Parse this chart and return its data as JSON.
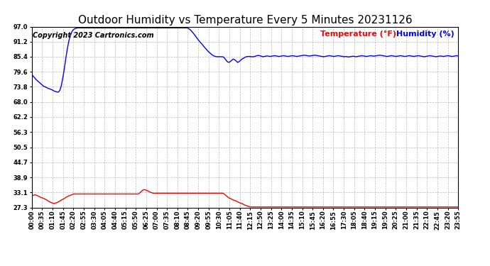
{
  "title": "Outdoor Humidity vs Temperature Every 5 Minutes 20231126",
  "copyright": "Copyright 2023 Cartronics.com",
  "legend_temp": "Temperature (°F)",
  "legend_hum": "Humidity (%)",
  "ylabel_values": [
    27.3,
    33.1,
    38.9,
    44.7,
    50.5,
    56.3,
    62.2,
    68.0,
    73.8,
    79.6,
    85.4,
    91.2,
    97.0
  ],
  "ymin": 27.3,
  "ymax": 97.0,
  "temp_color": "red",
  "humidity_color": "blue",
  "background_color": "#ffffff",
  "title_fontsize": 11,
  "copyright_fontsize": 7,
  "legend_fontsize": 8,
  "tick_fontsize": 6,
  "x_tick_labels": [
    "00:00",
    "00:35",
    "01:10",
    "01:45",
    "02:20",
    "02:55",
    "03:30",
    "04:05",
    "04:40",
    "05:15",
    "05:50",
    "06:25",
    "07:00",
    "07:35",
    "08:10",
    "08:45",
    "09:20",
    "09:55",
    "10:30",
    "11:05",
    "11:40",
    "12:15",
    "12:50",
    "13:25",
    "14:00",
    "14:35",
    "15:10",
    "15:45",
    "16:20",
    "16:55",
    "17:30",
    "18:05",
    "18:40",
    "19:15",
    "19:50",
    "20:25",
    "21:00",
    "21:35",
    "22:10",
    "22:45",
    "23:20",
    "23:55"
  ],
  "humidity_data": [
    78.5,
    77.8,
    77.2,
    76.5,
    76.0,
    75.5,
    75.0,
    74.5,
    74.0,
    73.8,
    73.5,
    73.2,
    73.0,
    72.8,
    72.5,
    72.2,
    72.0,
    71.8,
    71.8,
    72.5,
    74.5,
    77.5,
    81.0,
    85.0,
    88.5,
    91.5,
    93.5,
    95.0,
    95.8,
    96.2,
    96.4,
    96.5,
    96.5,
    96.5,
    96.5,
    96.5,
    96.5,
    96.5,
    96.5,
    96.5,
    96.5,
    96.5,
    96.5,
    96.5,
    96.5,
    96.5,
    96.5,
    96.5,
    96.5,
    96.5,
    96.5,
    96.5,
    96.5,
    96.5,
    96.5,
    96.5,
    96.5,
    96.5,
    96.5,
    96.5,
    96.5,
    96.5,
    96.5,
    96.5,
    96.5,
    96.5,
    96.5,
    96.5,
    96.5,
    96.5,
    96.5,
    96.5,
    96.5,
    96.5,
    96.5,
    96.5,
    96.5,
    96.5,
    96.5,
    96.5,
    96.5,
    96.5,
    96.5,
    96.5,
    96.5,
    96.5,
    96.5,
    96.5,
    96.5,
    96.5,
    96.5,
    96.5,
    96.5,
    96.5,
    96.5,
    96.5,
    96.5,
    96.5,
    96.5,
    96.5,
    96.5,
    96.5,
    96.5,
    96.5,
    96.5,
    96.5,
    96.2,
    95.8,
    95.2,
    94.5,
    93.8,
    93.0,
    92.2,
    91.5,
    90.8,
    90.2,
    89.5,
    88.8,
    88.2,
    87.5,
    87.0,
    86.5,
    86.0,
    85.7,
    85.5,
    85.4,
    85.4,
    85.4,
    85.4,
    85.4,
    85.0,
    84.2,
    83.5,
    83.2,
    83.5,
    84.0,
    84.5,
    84.2,
    83.8,
    83.2,
    83.5,
    84.0,
    84.5,
    84.8,
    85.2,
    85.4,
    85.5,
    85.5,
    85.4,
    85.4,
    85.4,
    85.6,
    85.8,
    85.9,
    85.8,
    85.6,
    85.4,
    85.5,
    85.6,
    85.7,
    85.6,
    85.5,
    85.6,
    85.7,
    85.8,
    85.7,
    85.6,
    85.5,
    85.6,
    85.7,
    85.8,
    85.7,
    85.6,
    85.5,
    85.6,
    85.7,
    85.8,
    85.7,
    85.6,
    85.5,
    85.6,
    85.7,
    85.8,
    85.9,
    86.0,
    85.9,
    85.8,
    85.7,
    85.7,
    85.8,
    85.9,
    86.0,
    85.9,
    85.8,
    85.7,
    85.6,
    85.5,
    85.4,
    85.5,
    85.6,
    85.7,
    85.8,
    85.7,
    85.6,
    85.5,
    85.6,
    85.7,
    85.8,
    85.7,
    85.6,
    85.5,
    85.4,
    85.5,
    85.4,
    85.3,
    85.4,
    85.5,
    85.6,
    85.5,
    85.4,
    85.5,
    85.6,
    85.7,
    85.8,
    85.7,
    85.6,
    85.5,
    85.6,
    85.7,
    85.8,
    85.7,
    85.6,
    85.7,
    85.8,
    85.9,
    86.0,
    85.9,
    85.8,
    85.7,
    85.6,
    85.5,
    85.6,
    85.7,
    85.8,
    85.7,
    85.6,
    85.5,
    85.6,
    85.7,
    85.8,
    85.7,
    85.6,
    85.5,
    85.6,
    85.7,
    85.8,
    85.7,
    85.6,
    85.5,
    85.6,
    85.7,
    85.8,
    85.7,
    85.6,
    85.5,
    85.4,
    85.5,
    85.6,
    85.7,
    85.8,
    85.7,
    85.6,
    85.5,
    85.4,
    85.5,
    85.6,
    85.7,
    85.6,
    85.5,
    85.6,
    85.7,
    85.8,
    85.7,
    85.6,
    85.5,
    85.6,
    85.7,
    85.8,
    85.7
  ],
  "temp_data": [
    31.8,
    32.0,
    32.2,
    32.0,
    31.8,
    31.5,
    31.2,
    31.0,
    30.8,
    30.5,
    30.2,
    29.8,
    29.5,
    29.2,
    29.0,
    28.8,
    29.0,
    29.2,
    29.5,
    29.8,
    30.2,
    30.5,
    30.8,
    31.2,
    31.5,
    31.8,
    32.0,
    32.2,
    32.5,
    32.5,
    32.5,
    32.5,
    32.5,
    32.5,
    32.5,
    32.5,
    32.5,
    32.5,
    32.5,
    32.5,
    32.5,
    32.5,
    32.5,
    32.5,
    32.5,
    32.5,
    32.5,
    32.5,
    32.5,
    32.5,
    32.5,
    32.5,
    32.5,
    32.5,
    32.5,
    32.5,
    32.5,
    32.5,
    32.5,
    32.5,
    32.5,
    32.5,
    32.5,
    32.5,
    32.5,
    32.5,
    32.5,
    32.5,
    32.5,
    32.5,
    32.5,
    32.5,
    32.5,
    33.0,
    33.5,
    34.0,
    34.2,
    34.0,
    33.8,
    33.5,
    33.2,
    33.0,
    32.8,
    32.8,
    32.8,
    32.8,
    32.8,
    32.8,
    32.8,
    32.8,
    32.8,
    32.8,
    32.8,
    32.8,
    32.8,
    32.8,
    32.8,
    32.8,
    32.8,
    32.8,
    32.8,
    32.8,
    32.8,
    32.8,
    32.8,
    32.8,
    32.8,
    32.8,
    32.8,
    32.8,
    32.8,
    32.8,
    32.8,
    32.8,
    32.8,
    32.8,
    32.8,
    32.8,
    32.8,
    32.8,
    32.8,
    32.8,
    32.8,
    32.8,
    32.8,
    32.8,
    32.8,
    32.8,
    32.8,
    32.8,
    32.5,
    32.0,
    31.5,
    31.0,
    30.8,
    30.5,
    30.2,
    30.0,
    29.8,
    29.5,
    29.2,
    29.0,
    28.8,
    28.5,
    28.2,
    28.0,
    27.8,
    27.6,
    27.5,
    27.5,
    27.5,
    27.5,
    27.5,
    27.5,
    27.5,
    27.5,
    27.5,
    27.5,
    27.5,
    27.5,
    27.5,
    27.5,
    27.5,
    27.5,
    27.5,
    27.5,
    27.5,
    27.5,
    27.5,
    27.5,
    27.5,
    27.5,
    27.5,
    27.5,
    27.5,
    27.5,
    27.5,
    27.5,
    27.5,
    27.5,
    27.5,
    27.5,
    27.5,
    27.5,
    27.5,
    27.5,
    27.5,
    27.5,
    27.5,
    27.5,
    27.5,
    27.5,
    27.5,
    27.5,
    27.5,
    27.5,
    27.5,
    27.5,
    27.5,
    27.5,
    27.5,
    27.5,
    27.5,
    27.5,
    27.5,
    27.5,
    27.5,
    27.5,
    27.5,
    27.5,
    27.5,
    27.5,
    27.5,
    27.5,
    27.5,
    27.5,
    27.5,
    27.5,
    27.5,
    27.5,
    27.5,
    27.5,
    27.5,
    27.5,
    27.5,
    27.5,
    27.5,
    27.5,
    27.5,
    27.5,
    27.5,
    27.5,
    27.5,
    27.5,
    27.5,
    27.5,
    27.5,
    27.5,
    27.5,
    27.5,
    27.5,
    27.5,
    27.5,
    27.5,
    27.5,
    27.5,
    27.5,
    27.5,
    27.5,
    27.5,
    27.5,
    27.5,
    27.5,
    27.5,
    27.5,
    27.5,
    27.5,
    27.5,
    27.5,
    27.5,
    27.5,
    27.5,
    27.5,
    27.5,
    27.5,
    27.5,
    27.5,
    27.5,
    27.5,
    27.5,
    27.5,
    27.5,
    27.5,
    27.5,
    27.5,
    27.5,
    27.5,
    27.5,
    27.5,
    27.5,
    27.5,
    27.5,
    27.5,
    27.5,
    27.5,
    27.5,
    27.5,
    27.5,
    27.5
  ]
}
